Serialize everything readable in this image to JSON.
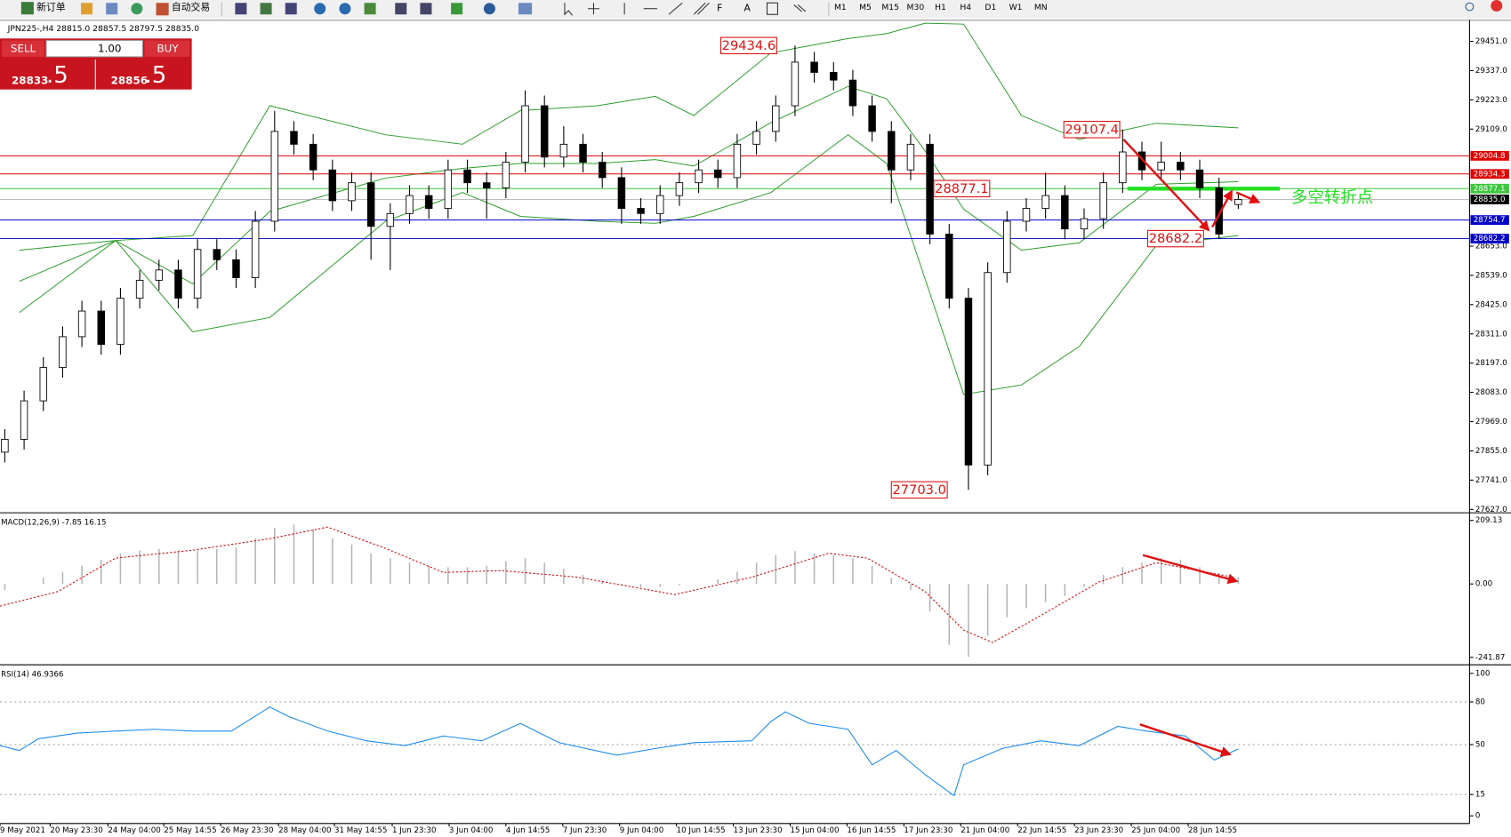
{
  "toolbar": {
    "new_order": "新订单",
    "auto_trading": "自动交易",
    "timeframes": [
      "M1",
      "M5",
      "M15",
      "M30",
      "H1",
      "H4",
      "D1",
      "W1",
      "MN"
    ]
  },
  "trade_panel": {
    "sell": "SELL",
    "buy": "BUY",
    "lots": "1.00",
    "bid_big": "28833",
    "bid_pip": ".5",
    "ask_big": "28856",
    "ask_pip": ".5"
  },
  "chart_data": [
    {
      "type": "candlestick",
      "title": "JPN225-,H4  28815.0 28857.5 28797.5 28835.0",
      "xlim": [
        -0.25,
        76
      ],
      "ylim": [
        27617.5,
        29529.7
      ],
      "yticks": [
        {
          "value": 29451,
          "label": "29451.0"
        },
        {
          "value": 29337,
          "label": "29337.0"
        },
        {
          "value": 29223,
          "label": "29223.0"
        },
        {
          "value": 29109,
          "label": "29109.0"
        },
        {
          "value": 28653,
          "label": "28653.0"
        },
        {
          "value": 28539,
          "label": "28539.0"
        },
        {
          "value": 28425,
          "label": "28425.0"
        },
        {
          "value": 28311,
          "label": "28311.0"
        },
        {
          "value": 28197,
          "label": "28197.0"
        },
        {
          "value": 28083,
          "label": "28083.0"
        },
        {
          "value": 27969,
          "label": "27969.0"
        },
        {
          "value": 27855,
          "label": "27855.0"
        },
        {
          "value": 27741,
          "label": "27741.0"
        },
        {
          "value": 27627,
          "label": "27627.0"
        }
      ],
      "x": [
        0,
        1,
        2,
        3,
        4,
        5,
        6,
        7,
        8,
        9,
        10,
        11,
        12,
        13,
        14,
        15,
        16,
        17,
        18,
        19,
        20,
        21,
        22,
        23,
        24,
        25,
        26,
        27,
        28,
        29,
        30,
        31,
        32,
        33,
        34,
        35,
        36,
        37,
        38,
        39,
        40,
        41,
        42,
        43,
        44,
        45,
        46,
        47,
        48,
        49,
        50,
        51,
        52,
        53,
        54,
        55,
        56,
        57,
        58,
        59,
        60,
        61,
        62,
        63,
        64
      ],
      "open": [
        27850,
        27900,
        28050,
        28180,
        28300,
        28400,
        28270,
        28450,
        28520,
        28560,
        28450,
        28640,
        28600,
        28530,
        28750,
        29100,
        29050,
        28950,
        28830,
        28900,
        28730,
        28780,
        28850,
        28800,
        28950,
        28900,
        28880,
        28980,
        29200,
        29000,
        29050,
        28980,
        28920,
        28800,
        28780,
        28850,
        28900,
        28950,
        28920,
        29050,
        29100,
        29200,
        29370,
        29330,
        29300,
        29200,
        29100,
        28950,
        29050,
        28700,
        28450,
        27800,
        28550,
        28750,
        28800,
        28850,
        28720,
        28760,
        28900,
        29020,
        28950,
        28980,
        28950,
        28880,
        28815.0
      ],
      "high": [
        27940,
        28090,
        28220,
        28340,
        28440,
        28440,
        28490,
        28560,
        28600,
        28600,
        28680,
        28680,
        28640,
        28790,
        29180,
        29140,
        29090,
        28990,
        28940,
        28940,
        28820,
        28890,
        28890,
        28990,
        28990,
        28940,
        29020,
        29260,
        29240,
        29120,
        29090,
        29020,
        28960,
        28840,
        28890,
        28940,
        28990,
        28990,
        29090,
        29140,
        29240,
        29434.6,
        29410,
        29370,
        29340,
        29240,
        29140,
        29090,
        29090,
        28740,
        28490,
        28590,
        28790,
        28840,
        28940,
        28890,
        28800,
        28940,
        29107.4,
        29060,
        29060,
        29020,
        28990,
        28920,
        28857.5
      ],
      "low": [
        27810,
        27860,
        28010,
        28140,
        28260,
        28230,
        28230,
        28410,
        28480,
        28410,
        28410,
        28560,
        28490,
        28490,
        28710,
        29010,
        28910,
        28790,
        28790,
        28600,
        28560,
        28740,
        28760,
        28760,
        28860,
        28760,
        28840,
        28940,
        28960,
        28960,
        28940,
        28880,
        28740,
        28740,
        28740,
        28810,
        28860,
        28880,
        28880,
        29010,
        29060,
        29160,
        29290,
        29260,
        29160,
        29060,
        28820,
        28910,
        28660,
        28410,
        27703.0,
        27760,
        28510,
        28710,
        28760,
        28680,
        28680,
        28720,
        28860,
        28910,
        28910,
        28910,
        28840,
        28682.2,
        28797.5
      ],
      "close": [
        27900,
        28050,
        28180,
        28300,
        28400,
        28270,
        28450,
        28520,
        28560,
        28450,
        28640,
        28600,
        28530,
        28750,
        29100,
        29050,
        28950,
        28830,
        28900,
        28730,
        28780,
        28850,
        28800,
        28950,
        28900,
        28880,
        28980,
        29200,
        29000,
        29050,
        28980,
        28920,
        28800,
        28780,
        28850,
        28900,
        28950,
        28920,
        29050,
        29100,
        29200,
        29370,
        29330,
        29300,
        29200,
        29100,
        28950,
        29050,
        28700,
        28450,
        27800,
        28550,
        28750,
        28800,
        28850,
        28720,
        28760,
        28900,
        29020,
        28950,
        28980,
        28950,
        28880,
        28700,
        28835.0
      ],
      "bands": {
        "color": "#2a9d2a",
        "x": [
          0.75,
          5.75,
          9.75,
          13.75,
          19.75,
          23.75,
          26.75,
          30.75,
          33.75,
          35.75,
          39.75,
          43.75,
          45.75,
          47.75,
          49.75,
          52.75,
          55.75,
          59.75,
          64
        ],
        "upper": [
          28637,
          28675,
          28694,
          29200,
          29087,
          29050,
          29181,
          29200,
          29237,
          29162,
          29406,
          29462,
          29481,
          29522,
          29518,
          29162,
          29069,
          29132,
          29114
        ],
        "middle": [
          28516,
          28675,
          28506,
          28788,
          28918,
          28956,
          28975,
          28975,
          28990,
          28965,
          29134,
          29275,
          29228,
          29024,
          28797,
          28637,
          28666,
          28894,
          28904
        ],
        "lower": [
          28394,
          28675,
          28319,
          28375,
          28750,
          28862,
          28769,
          28750,
          28742,
          28769,
          28862,
          29087,
          28975,
          28525,
          28075,
          28112,
          28262,
          28656,
          28694
        ]
      },
      "levels": [
        {
          "value": 29004.8,
          "label": "29004.8",
          "color": "#e00000"
        },
        {
          "value": 28934.3,
          "label": "28934.3",
          "color": "#e00000"
        },
        {
          "value": 28877.1,
          "label": "28877.1",
          "color": "#3cc83c"
        },
        {
          "value": 28835.0,
          "label": "28835.0",
          "color": "#000000"
        },
        {
          "value": 28754.7,
          "label": "28754.7",
          "color": "#0000c8"
        },
        {
          "value": 28682.2,
          "label": "28682.2",
          "color": "#0000c8"
        }
      ],
      "annotations": [
        {
          "x": 38.6,
          "value": 29434.6,
          "label": "29434.6"
        },
        {
          "x": 56.4,
          "value": 29107.4,
          "label": "29107.4"
        },
        {
          "x": 49.65,
          "value": 28877.1,
          "label": "28877.1"
        },
        {
          "x": 60.75,
          "value": 28682.2,
          "label": "28682.2"
        },
        {
          "x": 47.45,
          "value": 27703.0,
          "label": "27703.0"
        }
      ],
      "turn_line": {
        "value": 28877.1,
        "x": [
          58.25,
          66.15
        ],
        "color": "#22e022",
        "label": "多空转折点"
      }
    },
    {
      "type": "macd",
      "title": "MACD(12,26,9) -7.85 16.15",
      "xlim": [
        -0.25,
        76
      ],
      "ylim": [
        -263,
        228
      ],
      "yticks": [
        {
          "value": 209.13,
          "label": "209.13"
        },
        {
          "value": 0,
          "label": "0.00"
        },
        {
          "value": -241.87,
          "label": "-241.87"
        }
      ],
      "x": [
        0,
        1,
        2,
        3,
        4,
        5,
        6,
        7,
        8,
        9,
        10,
        11,
        12,
        13,
        14,
        15,
        16,
        17,
        18,
        19,
        20,
        21,
        22,
        23,
        24,
        25,
        26,
        27,
        28,
        29,
        30,
        31,
        32,
        33,
        34,
        35,
        36,
        37,
        38,
        39,
        40,
        41,
        42,
        43,
        44,
        45,
        46,
        47,
        48,
        49,
        50,
        51,
        52,
        53,
        54,
        55,
        56,
        57,
        58,
        59,
        60,
        61,
        62,
        63,
        64
      ],
      "values": [
        -20,
        0,
        20,
        40,
        60,
        80,
        100,
        110,
        115,
        110,
        110,
        115,
        120,
        150,
        185,
        196,
        180,
        150,
        130,
        100,
        85,
        70,
        60,
        55,
        55,
        60,
        75,
        85,
        70,
        50,
        30,
        10,
        -5,
        -12,
        -10,
        -5,
        0,
        15,
        40,
        70,
        95,
        108,
        100,
        95,
        85,
        60,
        20,
        -20,
        -90,
        -200,
        -240,
        -170,
        -110,
        -80,
        -60,
        -40,
        -10,
        30,
        55,
        70,
        85,
        80,
        55,
        35,
        22
      ],
      "color": "#b4b4b4",
      "signal": {
        "color": "#e00000",
        "x": [
          -0.25,
          2.75,
          5.75,
          9.75,
          13.75,
          16.75,
          19.75,
          22.75,
          25.75,
          29.75,
          34.75,
          38.75,
          42.75,
          44.75,
          47.75,
          49.75,
          51.25,
          53.75,
          56.75,
          59.75,
          63.75
        ],
        "values": [
          -73,
          -25,
          85,
          111,
          149,
          187,
          117,
          38,
          44,
          22,
          -35,
          22,
          101,
          85,
          -25,
          -152,
          -193,
          -104,
          6,
          70,
          22
        ]
      }
    },
    {
      "type": "line",
      "title": "RSI(14) 46.9366",
      "xlim": [
        -0.25,
        76
      ],
      "ylim": [
        -4.7,
        104.7
      ],
      "yticks": [
        100,
        80,
        50,
        15,
        0
      ],
      "grid_levels": [
        80,
        50,
        15
      ],
      "color": "#1e8cf0",
      "x": [
        -0.25,
        0.75,
        1.75,
        3.75,
        5.75,
        7.75,
        9.75,
        11.75,
        13.75,
        14.75,
        16.75,
        18.75,
        20.75,
        22.75,
        24.75,
        26.75,
        28.75,
        31.75,
        33.75,
        35.75,
        38.75,
        39.75,
        40.5,
        41.75,
        43.75,
        45,
        46.25,
        47.75,
        49.25,
        49.75,
        51.75,
        53.75,
        55.75,
        57.75,
        59.25,
        61.25,
        62.75,
        64
      ],
      "values": [
        49.3,
        45.9,
        54.1,
        58.1,
        59.5,
        60.8,
        59.5,
        59.5,
        76.4,
        69.6,
        59.5,
        52.7,
        49.3,
        56.1,
        52.7,
        64.9,
        51.4,
        42.6,
        47.3,
        51.4,
        52.7,
        66.2,
        73,
        64.9,
        60.8,
        35.8,
        45.9,
        29,
        14.2,
        35.8,
        47.3,
        52.7,
        49.3,
        62.8,
        59.5,
        56.1,
        39.2,
        46.9366
      ],
      "xticks": [
        {
          "value": -0.25,
          "label": "9 May 2021"
        },
        {
          "value": 2.35,
          "label": "20 May 23:30"
        },
        {
          "value": 5.35,
          "label": "24 May 04:00"
        },
        {
          "value": 8.25,
          "label": "25 May 14:55"
        },
        {
          "value": 11.2,
          "label": "26 May 23:30"
        },
        {
          "value": 14.2,
          "label": "28 May 04:00"
        },
        {
          "value": 17.1,
          "label": "31 May 14:55"
        },
        {
          "value": 20.1,
          "label": "1 Jun 23:30"
        },
        {
          "value": 23.05,
          "label": "3 Jun 04:00"
        },
        {
          "value": 26,
          "label": "4 Jun 14:55"
        },
        {
          "value": 28.95,
          "label": "7 Jun 23:30"
        },
        {
          "value": 31.9,
          "label": "9 Jun 04:00"
        },
        {
          "value": 34.85,
          "label": "10 Jun 14:55"
        },
        {
          "value": 37.8,
          "label": "13 Jun 23:30"
        },
        {
          "value": 40.75,
          "label": "15 Jun 04:00"
        },
        {
          "value": 43.7,
          "label": "16 Jun 14:55"
        },
        {
          "value": 46.65,
          "label": "17 Jun 23:30"
        },
        {
          "value": 49.6,
          "label": "21 Jun 04:00"
        },
        {
          "value": 52.55,
          "label": "22 Jun 14:55"
        },
        {
          "value": 55.5,
          "label": "23 Jun 23:30"
        },
        {
          "value": 58.45,
          "label": "25 Jun 04:00"
        },
        {
          "value": 61.4,
          "label": "28 Jun 14:55"
        }
      ]
    }
  ]
}
